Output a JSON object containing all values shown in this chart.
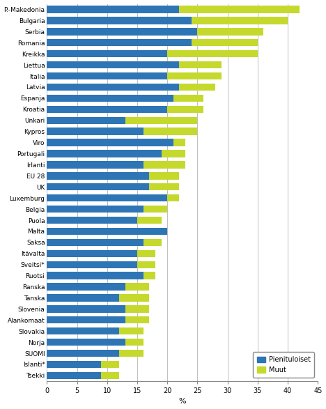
{
  "countries": [
    "P.-Makedonia",
    "Bulgaria",
    "Serbia",
    "Romania",
    "Kreikka",
    "Liettua",
    "Italia",
    "Latvia",
    "Espanja",
    "Kroatia",
    "Unkari",
    "Kypros",
    "Viro",
    "Portugali",
    "Irlanti",
    "EU 28",
    "UK",
    "Luxemburg",
    "Belgia",
    "Puola",
    "Malta",
    "Saksa",
    "Itävalta",
    "Sveitsi*",
    "Ruotsi",
    "Ranska",
    "Tanska",
    "Slovenia",
    "Alankomaat",
    "Slovakia",
    "Norja",
    "SUOMI",
    "Islanti*",
    "Tsekki"
  ],
  "pienituloiset": [
    22,
    24,
    25,
    24,
    20,
    22,
    20,
    22,
    21,
    20,
    13,
    16,
    21,
    19,
    16,
    17,
    17,
    20,
    16,
    15,
    20,
    16,
    15,
    15,
    16,
    13,
    12,
    13,
    13,
    12,
    13,
    12,
    9,
    9
  ],
  "muut": [
    20,
    16,
    11,
    11,
    15,
    7,
    9,
    6,
    5,
    6,
    12,
    9,
    2,
    4,
    7,
    5,
    5,
    2,
    4,
    4,
    0,
    3,
    3,
    3,
    2,
    4,
    5,
    4,
    4,
    4,
    3,
    4,
    3,
    3
  ],
  "blue_color": "#2E75B6",
  "green_color": "#C5D92D",
  "xlabel": "%",
  "xlim": [
    0,
    45
  ],
  "xticks": [
    0,
    5,
    10,
    15,
    20,
    25,
    30,
    35,
    40,
    45
  ],
  "legend_labels": [
    "Pienituloiset",
    "Muut"
  ],
  "bar_height": 0.65,
  "grid_color": "#BEBEBE"
}
